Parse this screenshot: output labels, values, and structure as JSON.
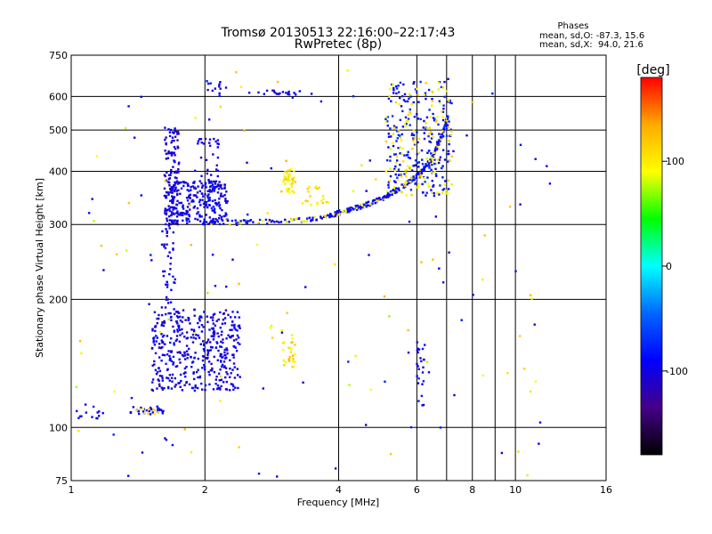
{
  "chart_data": {
    "type": "scatter",
    "title": "Tromsø 20130513 22:16:00–22:17:43",
    "subtitle": "RwPretec (8p)",
    "xlabel": "Frequency [MHz]",
    "ylabel": "Stationary phase Virtual Height [km]",
    "x_scale": "log",
    "y_scale": "log",
    "xlim": [
      1,
      16
    ],
    "ylim": [
      75,
      750
    ],
    "x_ticks": [
      {
        "value": 1,
        "label": "1"
      },
      {
        "value": 2,
        "label": "2"
      },
      {
        "value": 4,
        "label": "4"
      },
      {
        "value": 6,
        "label": "6"
      },
      {
        "value": 8,
        "label": "8"
      },
      {
        "value": 10,
        "label": "10"
      },
      {
        "value": 16,
        "label": "16"
      }
    ],
    "x_minor_grid": [
      7,
      9
    ],
    "y_ticks": [
      {
        "value": 75,
        "label": "75"
      },
      {
        "value": 100,
        "label": "100"
      },
      {
        "value": 200,
        "label": "200"
      },
      {
        "value": 300,
        "label": "300"
      },
      {
        "value": 400,
        "label": "400"
      },
      {
        "value": 500,
        "label": "500"
      },
      {
        "value": 600,
        "label": "600"
      },
      {
        "value": 750,
        "label": "750"
      }
    ],
    "grid": true,
    "phase_info": {
      "heading": "Phases",
      "line_o": "mean, sd,O: -87.3, 15.6",
      "line_x": "mean, sd,X:  94.0, 21.6"
    },
    "colorbar": {
      "label": "[deg]",
      "range": [
        -180,
        180
      ],
      "ticks": [
        {
          "value": 100,
          "label": "100"
        },
        {
          "value": 0,
          "label": "0"
        },
        {
          "value": -100,
          "label": "-100"
        }
      ],
      "colors": [
        "#ff0000",
        "#ffaa00",
        "#ffff00",
        "#00ff00",
        "#00ffff",
        "#0066ff",
        "#0000ff",
        "#440088",
        "#000000"
      ]
    },
    "clusters": [
      {
        "x": [
          1.0,
          1.18
        ],
        "y": [
          104,
          110
        ],
        "n": 12,
        "phase": -95
      },
      {
        "x": [
          1.36,
          1.62
        ],
        "y": [
          107,
          112
        ],
        "n": 30,
        "phase": -90
      },
      {
        "x": [
          1.38,
          1.62
        ],
        "y": [
          107,
          112
        ],
        "n": 10,
        "phase": 100
      },
      {
        "x": [
          1.52,
          2.4
        ],
        "y": [
          122,
          190
        ],
        "n": 420,
        "phase": -100
      },
      {
        "x": [
          1.6,
          1.72
        ],
        "y": [
          190,
          300
        ],
        "n": 40,
        "phase": -100
      },
      {
        "x": [
          1.62,
          1.75
        ],
        "y": [
          300,
          510
        ],
        "n": 120,
        "phase": -105
      },
      {
        "x": [
          1.64,
          2.25
        ],
        "y": [
          300,
          380
        ],
        "n": 260,
        "phase": -98
      },
      {
        "x": [
          1.9,
          2.15
        ],
        "y": [
          380,
          480
        ],
        "n": 30,
        "phase": -100
      },
      {
        "x": [
          2.0,
          2.25
        ],
        "y": [
          600,
          650
        ],
        "n": 12,
        "phase": -100
      },
      {
        "x": [
          2.5,
          3.5
        ],
        "y": [
          606,
          620
        ],
        "n": 20,
        "phase": -95
      },
      {
        "x": [
          3.0,
          3.2
        ],
        "y": [
          355,
          405
        ],
        "n": 40,
        "phase": 100
      },
      {
        "x": [
          3.0,
          3.2
        ],
        "y": [
          138,
          160
        ],
        "n": 25,
        "phase": 110
      },
      {
        "x": [
          2.8,
          3.2
        ],
        "y": [
          160,
          175
        ],
        "n": 6,
        "phase": 100
      },
      {
        "x": [
          3.3,
          3.8
        ],
        "y": [
          330,
          370
        ],
        "n": 20,
        "phase": 100
      },
      {
        "x": [
          5.1,
          7.2
        ],
        "y": [
          350,
          650
        ],
        "n": 220,
        "phase": -85
      },
      {
        "x": [
          5.1,
          7.2
        ],
        "y": [
          350,
          650
        ],
        "n": 120,
        "phase": 100
      },
      {
        "x": [
          6.0,
          6.25
        ],
        "y": [
          110,
          160
        ],
        "n": 25,
        "phase": -95
      }
    ],
    "curves": [
      {
        "x": [
          2.0,
          3.0,
          3.6,
          4.1,
          4.6,
          5.1,
          5.6,
          6.1,
          6.5,
          6.8,
          7.05
        ],
        "y": [
          302,
          305,
          310,
          322,
          333,
          348,
          370,
          395,
          430,
          480,
          540
        ],
        "n": 330,
        "phase": -90
      }
    ],
    "scattered_points": {
      "x": [
        1.0,
        12.5
      ],
      "y": [
        75,
        700
      ],
      "n": 150
    }
  }
}
